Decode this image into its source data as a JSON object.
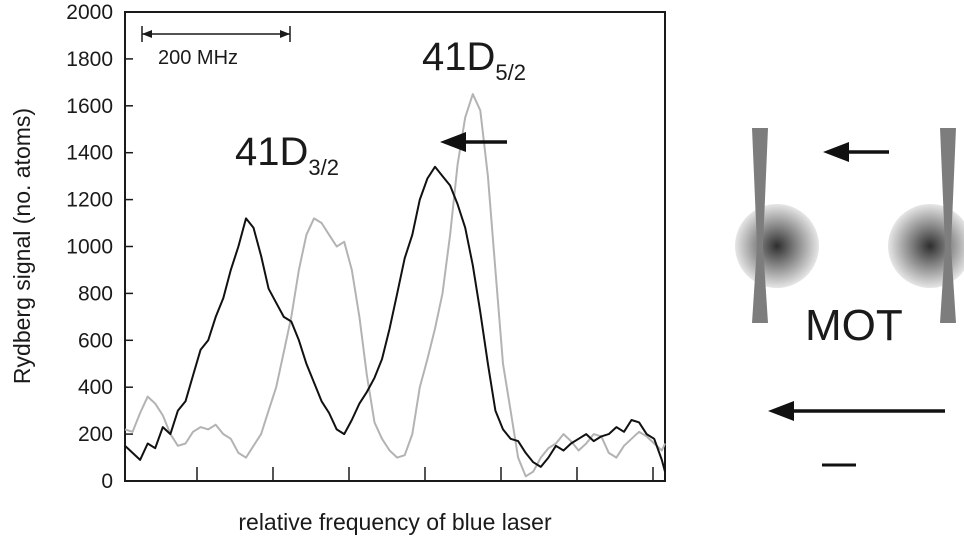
{
  "chart_data": {
    "type": "line",
    "title": "",
    "xlabel": "relative frequency of blue laser",
    "ylabel": "Rydberg signal (no. atoms)",
    "ylim": [
      0,
      2000
    ],
    "xlim": [
      0,
      1
    ],
    "yticks": [
      "0",
      "200",
      "400",
      "600",
      "800",
      "1000",
      "1200",
      "1400",
      "1600",
      "1800",
      "2000"
    ],
    "xticks_count": 7,
    "grid": false,
    "legend": "none",
    "series": [
      {
        "color": "#111111",
        "x": [
          0,
          0.014,
          0.028,
          0.042,
          0.056,
          0.07,
          0.084,
          0.098,
          0.112,
          0.126,
          0.14,
          0.154,
          0.168,
          0.182,
          0.196,
          0.21,
          0.224,
          0.238,
          0.252,
          0.266,
          0.28,
          0.294,
          0.308,
          0.322,
          0.336,
          0.35,
          0.364,
          0.378,
          0.392,
          0.406,
          0.42,
          0.434,
          0.448,
          0.462,
          0.476,
          0.49,
          0.504,
          0.518,
          0.532,
          0.546,
          0.56,
          0.574,
          0.588,
          0.602,
          0.616,
          0.63,
          0.644,
          0.658,
          0.672,
          0.686,
          0.7,
          0.714,
          0.728,
          0.742,
          0.756,
          0.77,
          0.784,
          0.798,
          0.812,
          0.826,
          0.84,
          0.854,
          0.868,
          0.882,
          0.896,
          0.91,
          0.924,
          0.938,
          0.952,
          0.966,
          0.98,
          0.994,
          1.0
        ],
        "y": [
          150,
          120,
          90,
          160,
          140,
          230,
          200,
          300,
          340,
          450,
          560,
          600,
          700,
          780,
          900,
          1000,
          1120,
          1080,
          960,
          820,
          760,
          700,
          680,
          600,
          500,
          420,
          340,
          290,
          220,
          200,
          260,
          330,
          380,
          440,
          520,
          650,
          800,
          950,
          1050,
          1200,
          1290,
          1340,
          1300,
          1260,
          1180,
          1080,
          920,
          720,
          500,
          300,
          220,
          180,
          170,
          120,
          80,
          60,
          100,
          150,
          130,
          160,
          180,
          200,
          170,
          190,
          200,
          230,
          210,
          260,
          250,
          200,
          180,
          90,
          40
        ]
      },
      {
        "color": "#b3b3b3",
        "x": [
          0,
          0.014,
          0.028,
          0.042,
          0.056,
          0.07,
          0.084,
          0.098,
          0.112,
          0.126,
          0.14,
          0.154,
          0.168,
          0.182,
          0.196,
          0.21,
          0.224,
          0.238,
          0.252,
          0.266,
          0.28,
          0.294,
          0.308,
          0.322,
          0.336,
          0.35,
          0.364,
          0.378,
          0.392,
          0.406,
          0.42,
          0.434,
          0.448,
          0.462,
          0.476,
          0.49,
          0.504,
          0.518,
          0.532,
          0.546,
          0.56,
          0.574,
          0.588,
          0.602,
          0.616,
          0.63,
          0.644,
          0.658,
          0.672,
          0.686,
          0.7,
          0.714,
          0.728,
          0.742,
          0.756,
          0.77,
          0.784,
          0.798,
          0.812,
          0.826,
          0.84,
          0.854,
          0.868,
          0.882,
          0.896,
          0.91,
          0.924,
          0.938,
          0.952,
          0.966,
          0.98,
          0.994,
          1.0
        ],
        "y": [
          220,
          210,
          290,
          360,
          330,
          280,
          200,
          150,
          160,
          210,
          230,
          220,
          240,
          200,
          180,
          120,
          100,
          150,
          200,
          300,
          400,
          550,
          700,
          900,
          1050,
          1120,
          1100,
          1050,
          1000,
          1020,
          900,
          700,
          450,
          250,
          180,
          130,
          100,
          110,
          200,
          400,
          520,
          650,
          800,
          1050,
          1350,
          1550,
          1650,
          1580,
          1300,
          900,
          500,
          300,
          100,
          20,
          40,
          100,
          140,
          160,
          200,
          170,
          130,
          160,
          200,
          190,
          120,
          100,
          150,
          180,
          210,
          190,
          160,
          130,
          160
        ]
      }
    ],
    "annotations": {
      "scale_bar": "200 MHz",
      "peak_d32": {
        "main": "41D",
        "sub": "3/2"
      },
      "peak_d52": {
        "main": "41D",
        "sub": "5/2"
      }
    }
  },
  "schematic": {
    "label": "MOT"
  }
}
